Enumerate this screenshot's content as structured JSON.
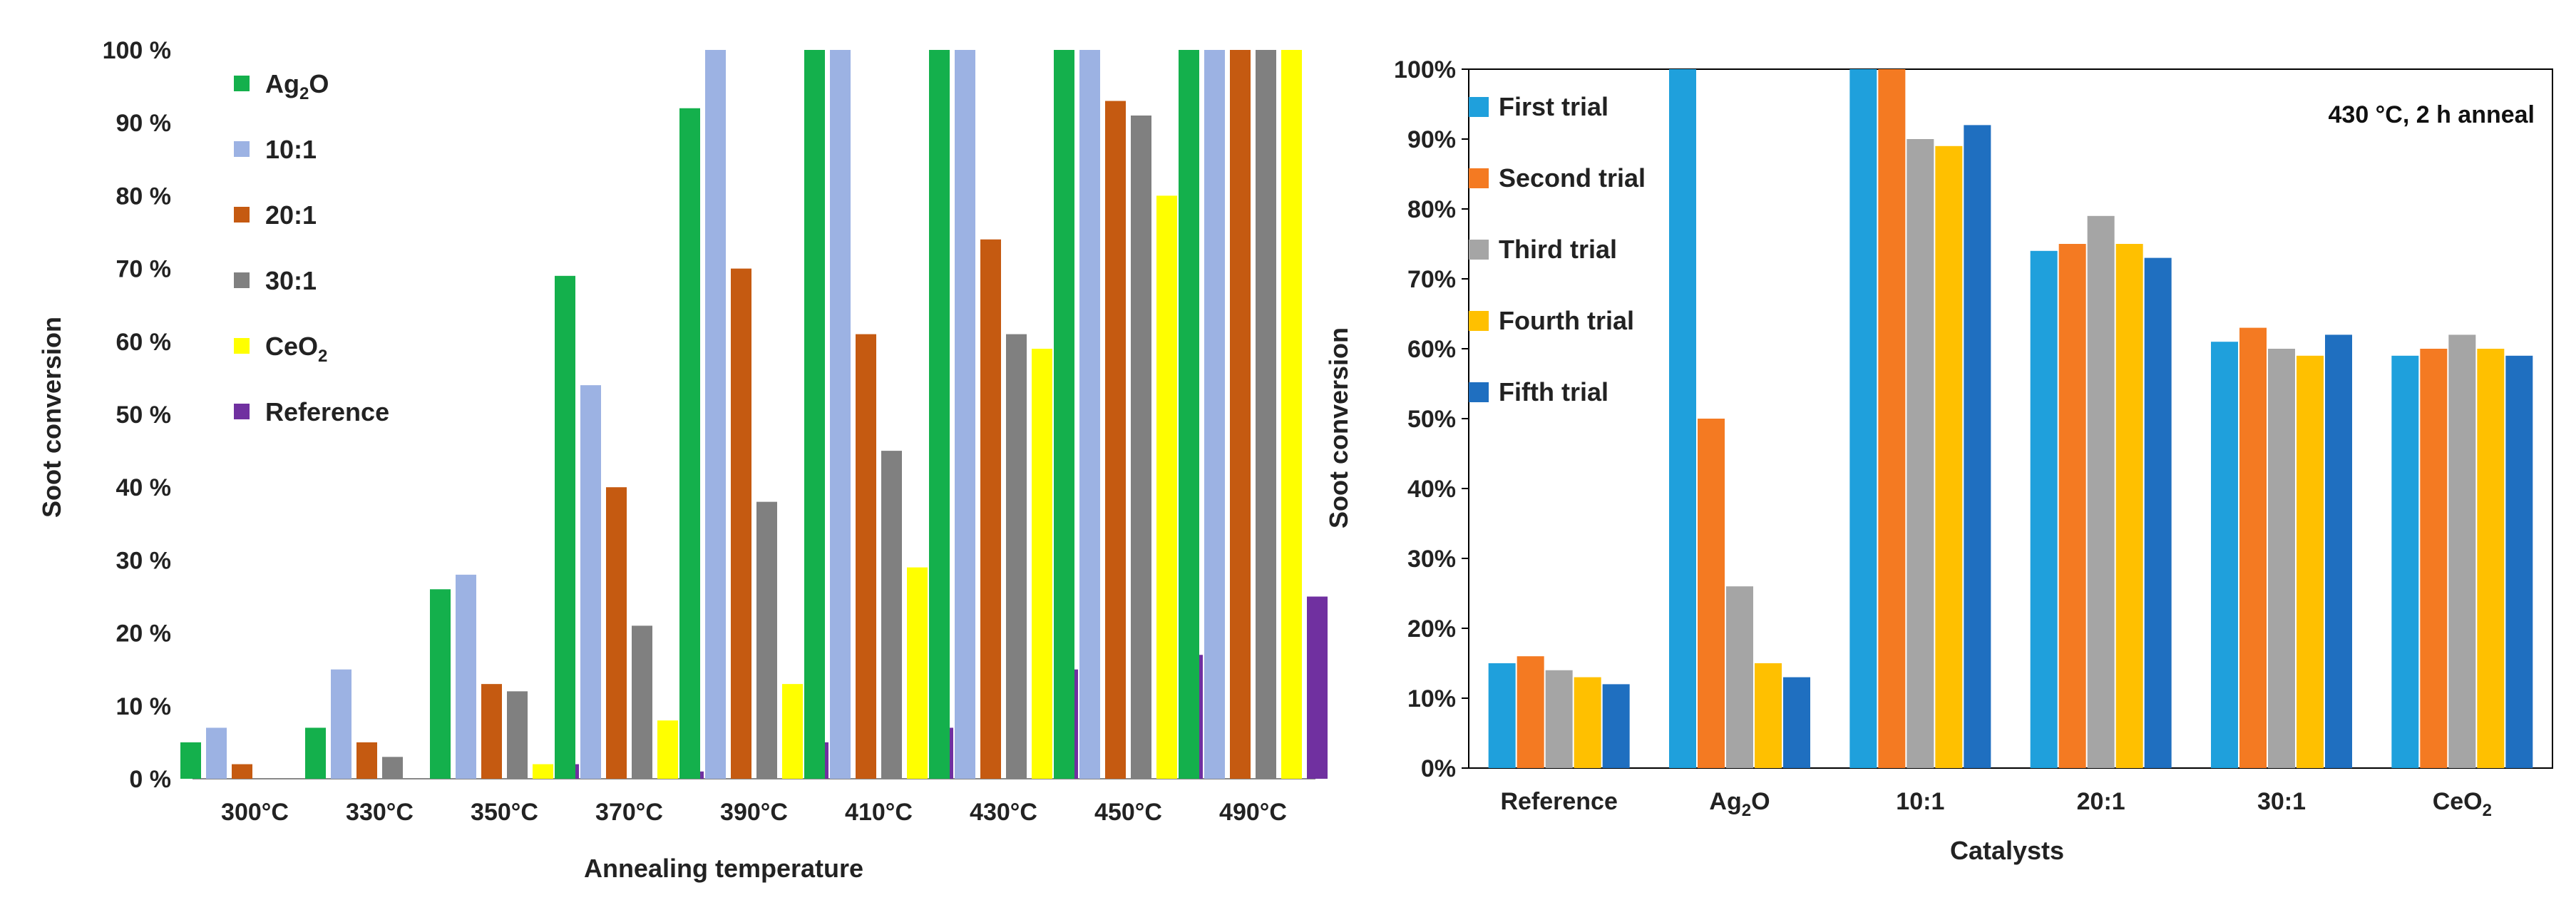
{
  "chart_data": [
    {
      "type": "bar",
      "title": "",
      "xlabel": "Annealing temperature",
      "ylabel": "Soot conversion",
      "ylim": [
        0,
        100
      ],
      "y_ticks": [
        "0 %",
        "10 %",
        "20 %",
        "30 %",
        "40 %",
        "50 %",
        "60 %",
        "70 %",
        "80 %",
        "90 %",
        "100 %"
      ],
      "y_tick_values": [
        0,
        10,
        20,
        30,
        40,
        50,
        60,
        70,
        80,
        90,
        100
      ],
      "legend_position": "top-left",
      "categories": [
        "300°C",
        "330°C",
        "350°C",
        "370°C",
        "390°C",
        "410°C",
        "430°C",
        "450°C",
        "490°C"
      ],
      "series": [
        {
          "name": "Ag2O",
          "legend_base": "Ag",
          "legend_sub": "2",
          "legend_tail": "O",
          "color": "#14b04c",
          "values": [
            5,
            7,
            26,
            69,
            92,
            100,
            100,
            100,
            100
          ]
        },
        {
          "name": "10:1",
          "legend_base": "10:1",
          "legend_sub": "",
          "legend_tail": "",
          "color": "#9cb2e3",
          "values": [
            7,
            15,
            28,
            54,
            100,
            100,
            100,
            100,
            100
          ]
        },
        {
          "name": "20:1",
          "legend_base": "20:1",
          "legend_sub": "",
          "legend_tail": "",
          "color": "#c55a11",
          "values": [
            2,
            5,
            13,
            40,
            70,
            61,
            74,
            93,
            100
          ]
        },
        {
          "name": "30:1",
          "legend_base": "30:1",
          "legend_sub": "",
          "legend_tail": "",
          "color": "#808080",
          "values": [
            0,
            3,
            12,
            21,
            38,
            45,
            61,
            91,
            100
          ]
        },
        {
          "name": "CeO2",
          "legend_base": "CeO",
          "legend_sub": "2",
          "legend_tail": "",
          "color": "#ffff00",
          "values": [
            0,
            0,
            2,
            8,
            13,
            29,
            59,
            80,
            100
          ]
        },
        {
          "name": "Reference",
          "legend_base": "Reference",
          "legend_sub": "",
          "legend_tail": "",
          "color": "#7030a0",
          "values": [
            0,
            0,
            2,
            1,
            5,
            7,
            15,
            17,
            25
          ]
        }
      ]
    },
    {
      "type": "bar",
      "title": "",
      "annotation": "430 °C, 2 h anneal",
      "xlabel": "Catalysts",
      "ylabel": "Soot conversion",
      "ylim": [
        0,
        100
      ],
      "y_ticks": [
        "0%",
        "10%",
        "20%",
        "30%",
        "40%",
        "50%",
        "60%",
        "70%",
        "80%",
        "90%",
        "100%"
      ],
      "y_tick_values": [
        0,
        10,
        20,
        30,
        40,
        50,
        60,
        70,
        80,
        90,
        100
      ],
      "legend_position": "top-left",
      "categories": [
        "Reference",
        "Ag2O",
        "10:1",
        "20:1",
        "30:1",
        "CeO2"
      ],
      "category_labels": [
        {
          "base": "Reference",
          "sub": "",
          "tail": ""
        },
        {
          "base": "Ag",
          "sub": "2",
          "tail": "O"
        },
        {
          "base": "10:1",
          "sub": "",
          "tail": ""
        },
        {
          "base": "20:1",
          "sub": "",
          "tail": ""
        },
        {
          "base": "30:1",
          "sub": "",
          "tail": ""
        },
        {
          "base": "CeO",
          "sub": "2",
          "tail": ""
        }
      ],
      "series": [
        {
          "name": "First trial",
          "color": "#1fa0dc",
          "values": [
            15,
            100,
            100,
            74,
            61,
            59
          ]
        },
        {
          "name": "Second trial",
          "color": "#f47a22",
          "values": [
            16,
            50,
            100,
            75,
            63,
            60
          ]
        },
        {
          "name": "Third  trial",
          "color": "#a5a5a5",
          "values": [
            14,
            26,
            90,
            79,
            60,
            62
          ]
        },
        {
          "name": "Fourth  trial",
          "color": "#ffc000",
          "values": [
            13,
            15,
            89,
            75,
            59,
            60
          ]
        },
        {
          "name": "Fifth  trial",
          "color": "#1f6fc0",
          "values": [
            12,
            13,
            92,
            73,
            62,
            59
          ]
        }
      ]
    }
  ]
}
